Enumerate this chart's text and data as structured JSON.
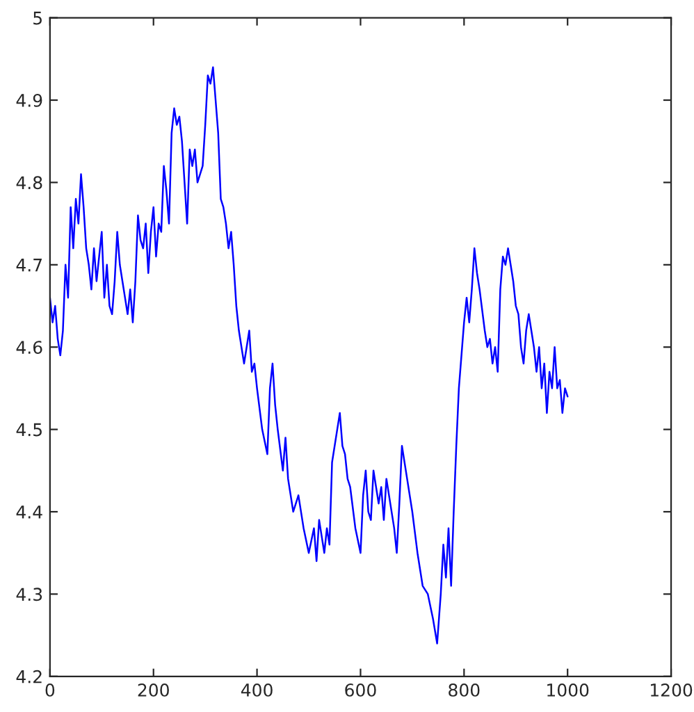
{
  "chart_data": {
    "type": "line",
    "xlim": [
      0,
      1200
    ],
    "ylim": [
      4.2,
      5
    ],
    "xticks": [
      0,
      200,
      400,
      600,
      800,
      1000,
      1200
    ],
    "yticks": [
      4.2,
      4.3,
      4.4,
      4.5,
      4.6,
      4.7,
      4.8,
      4.9,
      5
    ],
    "grid": false,
    "legend": false,
    "series": [
      {
        "color": "#0000ff",
        "x": [
          0,
          5,
          10,
          15,
          20,
          25,
          30,
          35,
          40,
          45,
          50,
          55,
          60,
          65,
          70,
          75,
          80,
          85,
          90,
          95,
          100,
          105,
          110,
          115,
          120,
          125,
          130,
          135,
          140,
          145,
          150,
          155,
          160,
          165,
          170,
          175,
          180,
          185,
          190,
          195,
          200,
          205,
          210,
          215,
          220,
          225,
          230,
          235,
          240,
          245,
          250,
          255,
          260,
          265,
          270,
          275,
          280,
          285,
          290,
          295,
          300,
          305,
          310,
          315,
          320,
          325,
          330,
          335,
          340,
          345,
          350,
          355,
          360,
          365,
          370,
          375,
          380,
          385,
          390,
          395,
          400,
          410,
          420,
          425,
          430,
          435,
          440,
          450,
          455,
          460,
          470,
          480,
          490,
          500,
          510,
          515,
          520,
          530,
          535,
          540,
          545,
          555,
          560,
          565,
          570,
          575,
          580,
          590,
          600,
          605,
          610,
          615,
          620,
          625,
          635,
          640,
          645,
          650,
          655,
          665,
          670,
          675,
          680,
          690,
          700,
          710,
          720,
          730,
          740,
          748,
          755,
          760,
          765,
          770,
          775,
          780,
          785,
          790,
          800,
          805,
          810,
          815,
          820,
          825,
          830,
          840,
          845,
          850,
          855,
          860,
          865,
          870,
          875,
          880,
          885,
          890,
          895,
          900,
          905,
          910,
          915,
          920,
          925,
          930,
          935,
          940,
          945,
          950,
          955,
          960,
          965,
          970,
          975,
          980,
          985,
          990,
          995,
          1000
        ],
        "values": [
          4.66,
          4.63,
          4.65,
          4.61,
          4.59,
          4.62,
          4.7,
          4.66,
          4.77,
          4.72,
          4.78,
          4.75,
          4.81,
          4.77,
          4.72,
          4.7,
          4.67,
          4.72,
          4.68,
          4.71,
          4.74,
          4.66,
          4.7,
          4.65,
          4.64,
          4.68,
          4.74,
          4.7,
          4.68,
          4.66,
          4.64,
          4.67,
          4.63,
          4.68,
          4.76,
          4.73,
          4.72,
          4.75,
          4.69,
          4.74,
          4.77,
          4.71,
          4.75,
          4.74,
          4.82,
          4.79,
          4.75,
          4.86,
          4.89,
          4.87,
          4.88,
          4.85,
          4.8,
          4.75,
          4.84,
          4.82,
          4.84,
          4.8,
          4.81,
          4.82,
          4.87,
          4.93,
          4.92,
          4.94,
          4.9,
          4.86,
          4.78,
          4.77,
          4.75,
          4.72,
          4.74,
          4.7,
          4.65,
          4.62,
          4.6,
          4.58,
          4.6,
          4.62,
          4.57,
          4.58,
          4.55,
          4.5,
          4.47,
          4.55,
          4.58,
          4.53,
          4.5,
          4.45,
          4.49,
          4.44,
          4.4,
          4.42,
          4.38,
          4.35,
          4.38,
          4.34,
          4.39,
          4.35,
          4.38,
          4.36,
          4.46,
          4.5,
          4.52,
          4.48,
          4.47,
          4.44,
          4.43,
          4.38,
          4.35,
          4.42,
          4.45,
          4.4,
          4.39,
          4.45,
          4.41,
          4.43,
          4.39,
          4.44,
          4.42,
          4.38,
          4.35,
          4.41,
          4.48,
          4.44,
          4.4,
          4.35,
          4.31,
          4.3,
          4.27,
          4.24,
          4.3,
          4.36,
          4.32,
          4.38,
          4.31,
          4.4,
          4.48,
          4.55,
          4.63,
          4.66,
          4.63,
          4.67,
          4.72,
          4.69,
          4.67,
          4.62,
          4.6,
          4.61,
          4.58,
          4.6,
          4.57,
          4.67,
          4.71,
          4.7,
          4.72,
          4.7,
          4.68,
          4.65,
          4.64,
          4.6,
          4.58,
          4.62,
          4.64,
          4.62,
          4.6,
          4.57,
          4.6,
          4.55,
          4.58,
          4.52,
          4.57,
          4.55,
          4.6,
          4.55,
          4.56,
          4.52,
          4.55,
          4.54
        ]
      }
    ]
  }
}
